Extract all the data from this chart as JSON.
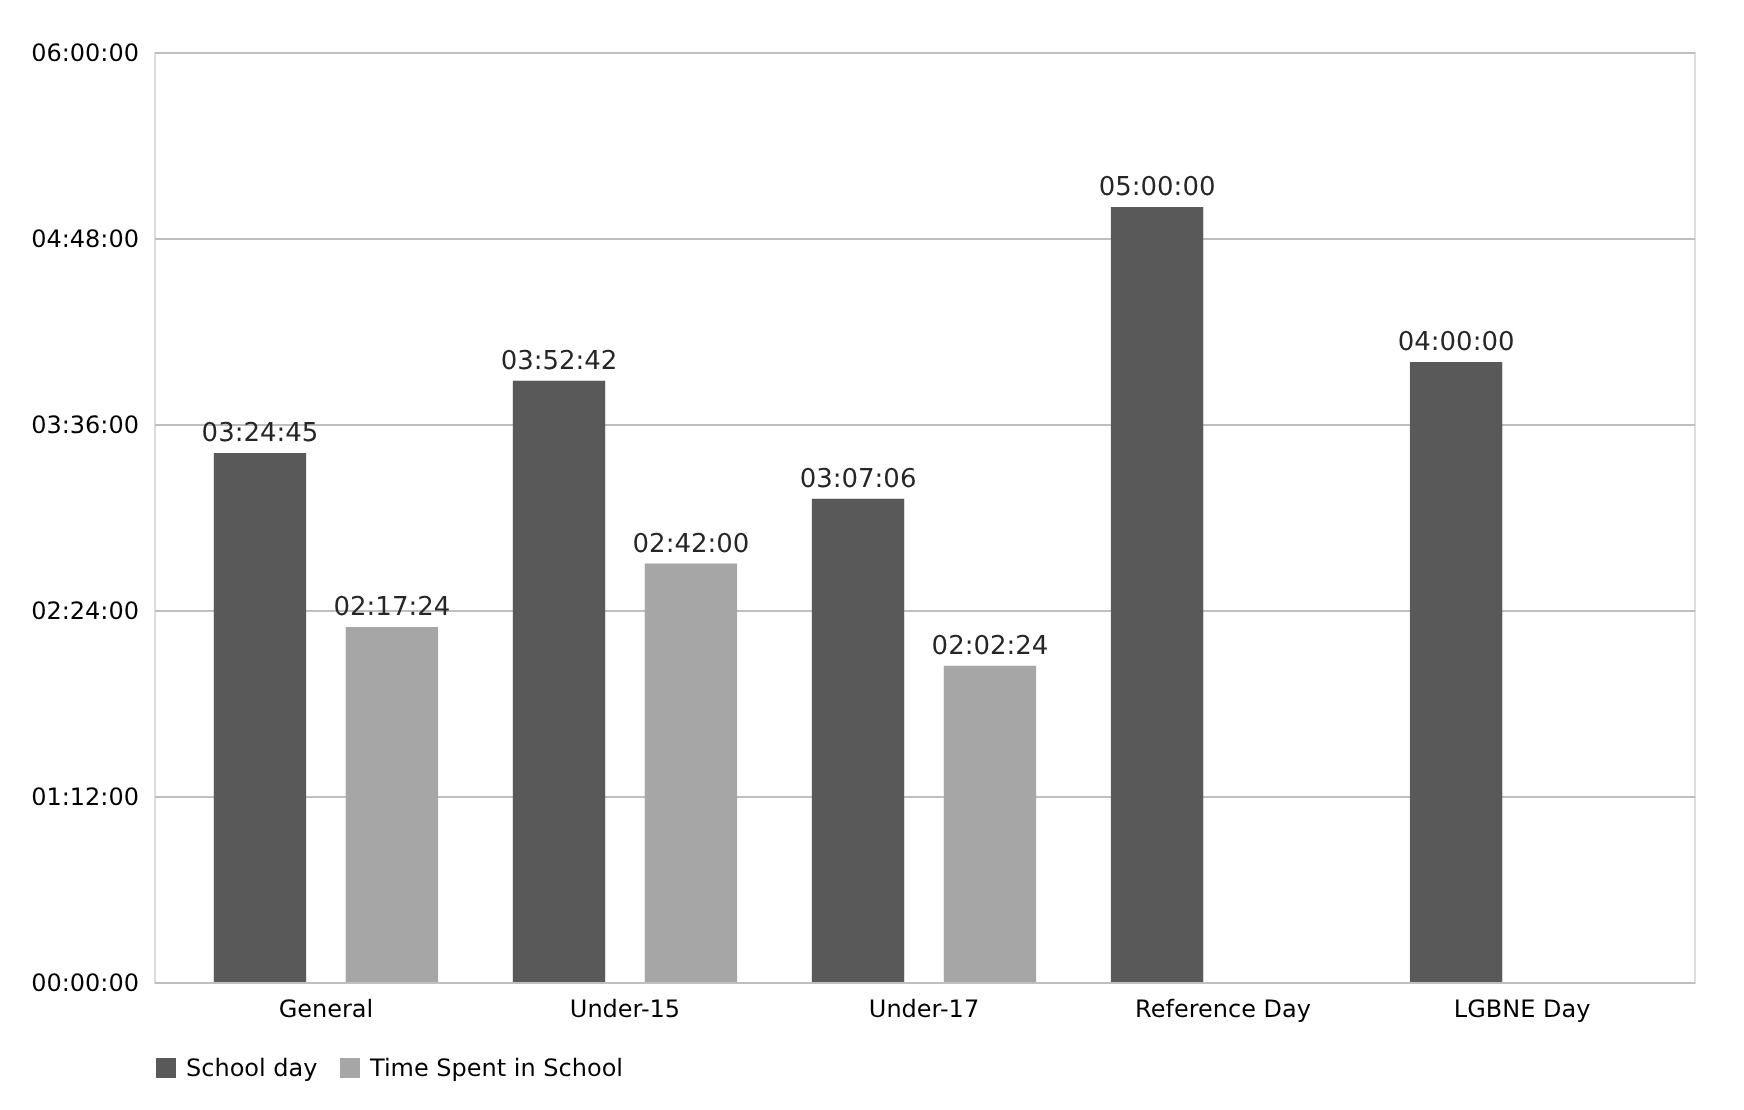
{
  "chart_data": {
    "type": "bar",
    "categories": [
      "General",
      "Under-15",
      "Under-17",
      "Reference Day",
      "LGBNE Day"
    ],
    "series": [
      {
        "name": "School day",
        "color": "#595959",
        "values": [
          3.4125,
          3.878333,
          3.118333,
          5,
          4
        ],
        "value_labels": [
          "03:24:45",
          "03:52:42",
          "03:07:06",
          "05:00:00",
          "04:00:00"
        ]
      },
      {
        "name": "Time Spent in School",
        "color": "#a6a6a6",
        "values": [
          2.29,
          2.7,
          2.04,
          null,
          null
        ],
        "value_labels": [
          "02:17:24",
          "02:42:00",
          "02:02:24",
          null,
          null
        ]
      }
    ],
    "ylim": [
      0,
      6
    ],
    "yticks": [
      {
        "value": 0,
        "label": "00:00:00"
      },
      {
        "value": 1.2,
        "label": "01:12:00"
      },
      {
        "value": 2.4,
        "label": "02:24:00"
      },
      {
        "value": 3.6,
        "label": "03:36:00"
      },
      {
        "value": 4.8,
        "label": "04:48:00"
      },
      {
        "value": 6,
        "label": "06:00:00"
      }
    ],
    "grid": "y",
    "legend": "bottom"
  }
}
